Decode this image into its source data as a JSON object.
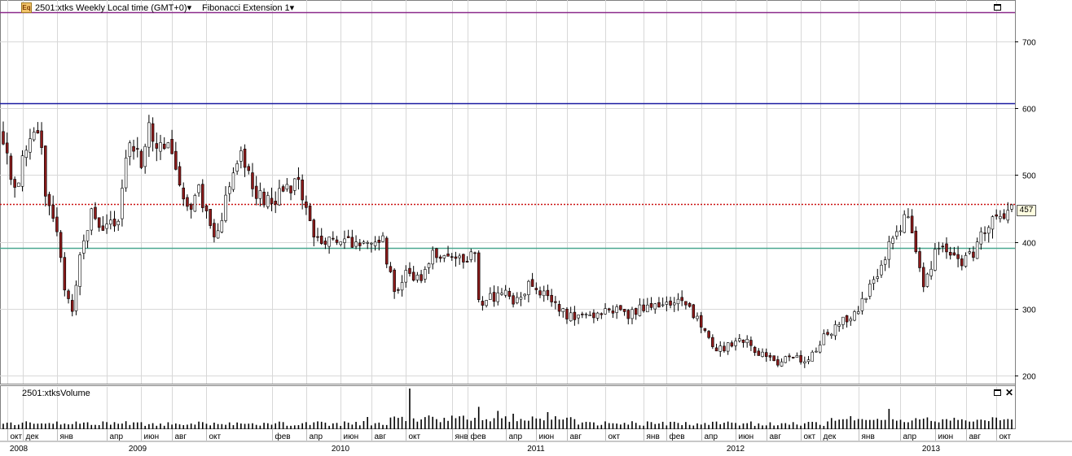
{
  "header": {
    "symbol_info": "2501:xtks Weekly Local time (GMT+0)",
    "indicator": "Fibonacci Extension 1",
    "icon_label": "Eq"
  },
  "volume_panel": {
    "title": "2501:xtksVolume"
  },
  "price_tag": "457",
  "colors": {
    "bull": "#ffffff",
    "bear": "#8b1a1a",
    "fib_top": "#8b2a8b",
    "fib_mid": "#1a1aa0",
    "fib_dash": "#cc1010",
    "fib_low": "#4aa890",
    "grid": "#d8d8d8"
  },
  "chart_data": {
    "type": "candlestick",
    "y_axis": {
      "ticks": [
        200,
        300,
        400,
        500,
        600,
        700
      ],
      "range": [
        190,
        760
      ]
    },
    "horizontal_lines": [
      {
        "value": 744,
        "style": "solid",
        "color": "#8b2a8b"
      },
      {
        "value": 608,
        "style": "solid",
        "color": "#1a1aa0"
      },
      {
        "value": 457,
        "style": "dotted",
        "color": "#cc1010"
      },
      {
        "value": 391,
        "style": "solid",
        "color": "#4aa890"
      }
    ],
    "month_labels": [
      {
        "t": 1,
        "label": "окт"
      },
      {
        "t": 5,
        "label": "дек"
      },
      {
        "t": 14,
        "label": "янв"
      },
      {
        "t": 27,
        "label": "апр"
      },
      {
        "t": 36,
        "label": "июн"
      },
      {
        "t": 44,
        "label": "авг"
      },
      {
        "t": 53,
        "label": "окт"
      },
      {
        "t": 70,
        "label": "фев"
      },
      {
        "t": 79,
        "label": "апр"
      },
      {
        "t": 88,
        "label": "июн"
      },
      {
        "t": 96,
        "label": "авг"
      },
      {
        "t": 105,
        "label": "окт"
      },
      {
        "t": 117,
        "label": "янв"
      },
      {
        "t": 121,
        "label": "фев"
      },
      {
        "t": 131,
        "label": "апр"
      },
      {
        "t": 139,
        "label": "июн"
      },
      {
        "t": 147,
        "label": "авг"
      },
      {
        "t": 157,
        "label": "окт"
      },
      {
        "t": 167,
        "label": "янв"
      },
      {
        "t": 173,
        "label": "фев"
      },
      {
        "t": 182,
        "label": "апр"
      },
      {
        "t": 191,
        "label": "июн"
      },
      {
        "t": 199,
        "label": "авг"
      },
      {
        "t": 208,
        "label": "окт"
      },
      {
        "t": 213,
        "label": "дек"
      },
      {
        "t": 223,
        "label": "янв"
      },
      {
        "t": 234,
        "label": "апр"
      },
      {
        "t": 243,
        "label": "июн"
      },
      {
        "t": 251,
        "label": "авг"
      },
      {
        "t": 259,
        "label": "окт"
      }
    ],
    "year_labels": [
      {
        "t": 4,
        "label": "2008"
      },
      {
        "t": 35,
        "label": "2009"
      },
      {
        "t": 88,
        "label": "2010"
      },
      {
        "t": 139,
        "label": "2011"
      },
      {
        "t": 191,
        "label": "2012"
      },
      {
        "t": 242,
        "label": "2013"
      }
    ],
    "weeks": 264,
    "close_keyframes": [
      [
        0,
        560
      ],
      [
        1,
        530
      ],
      [
        3,
        475
      ],
      [
        5,
        520
      ],
      [
        8,
        555
      ],
      [
        10,
        555
      ],
      [
        11,
        470
      ],
      [
        14,
        420
      ],
      [
        16,
        330
      ],
      [
        18,
        300
      ],
      [
        19,
        330
      ],
      [
        20,
        375
      ],
      [
        22,
        420
      ],
      [
        23,
        440
      ],
      [
        26,
        420
      ],
      [
        30,
        430
      ],
      [
        33,
        560
      ],
      [
        36,
        520
      ],
      [
        38,
        575
      ],
      [
        40,
        550
      ],
      [
        43,
        540
      ],
      [
        45,
        500
      ],
      [
        48,
        450
      ],
      [
        51,
        480
      ],
      [
        55,
        410
      ],
      [
        57,
        440
      ],
      [
        59,
        490
      ],
      [
        62,
        545
      ],
      [
        65,
        470
      ],
      [
        70,
        460
      ],
      [
        74,
        480
      ],
      [
        77,
        490
      ],
      [
        80,
        425
      ],
      [
        84,
        395
      ],
      [
        88,
        410
      ],
      [
        91,
        400
      ],
      [
        95,
        405
      ],
      [
        99,
        400
      ],
      [
        102,
        320
      ],
      [
        105,
        350
      ],
      [
        109,
        350
      ],
      [
        112,
        385
      ],
      [
        116,
        375
      ],
      [
        120,
        375
      ],
      [
        123,
        380
      ],
      [
        124,
        310
      ],
      [
        127,
        315
      ],
      [
        130,
        325
      ],
      [
        133,
        310
      ],
      [
        137,
        335
      ],
      [
        141,
        320
      ],
      [
        144,
        305
      ],
      [
        147,
        290
      ],
      [
        150,
        290
      ],
      [
        155,
        290
      ],
      [
        160,
        300
      ],
      [
        163,
        290
      ],
      [
        166,
        300
      ],
      [
        169,
        305
      ],
      [
        172,
        310
      ],
      [
        175,
        310
      ],
      [
        179,
        300
      ],
      [
        182,
        275
      ],
      [
        185,
        240
      ],
      [
        188,
        240
      ],
      [
        193,
        255
      ],
      [
        196,
        240
      ],
      [
        199,
        225
      ],
      [
        202,
        220
      ],
      [
        205,
        225
      ],
      [
        208,
        225
      ],
      [
        210,
        220
      ],
      [
        213,
        250
      ],
      [
        218,
        280
      ],
      [
        222,
        290
      ],
      [
        226,
        330
      ],
      [
        230,
        380
      ],
      [
        233,
        420
      ],
      [
        236,
        440
      ],
      [
        238,
        390
      ],
      [
        240,
        340
      ],
      [
        242,
        360
      ],
      [
        244,
        400
      ],
      [
        246,
        380
      ],
      [
        250,
        365
      ],
      [
        253,
        385
      ],
      [
        256,
        420
      ],
      [
        259,
        435
      ],
      [
        261,
        440
      ],
      [
        263,
        455
      ]
    ],
    "volume_spikes": [
      {
        "t": 106,
        "v": 1.0
      },
      {
        "t": 124,
        "v": 0.55
      },
      {
        "t": 129,
        "v": 0.45
      },
      {
        "t": 133,
        "v": 0.38
      },
      {
        "t": 142,
        "v": 0.42
      },
      {
        "t": 231,
        "v": 0.5
      },
      {
        "t": 221,
        "v": 0.32
      },
      {
        "t": 95,
        "v": 0.3
      }
    ]
  }
}
